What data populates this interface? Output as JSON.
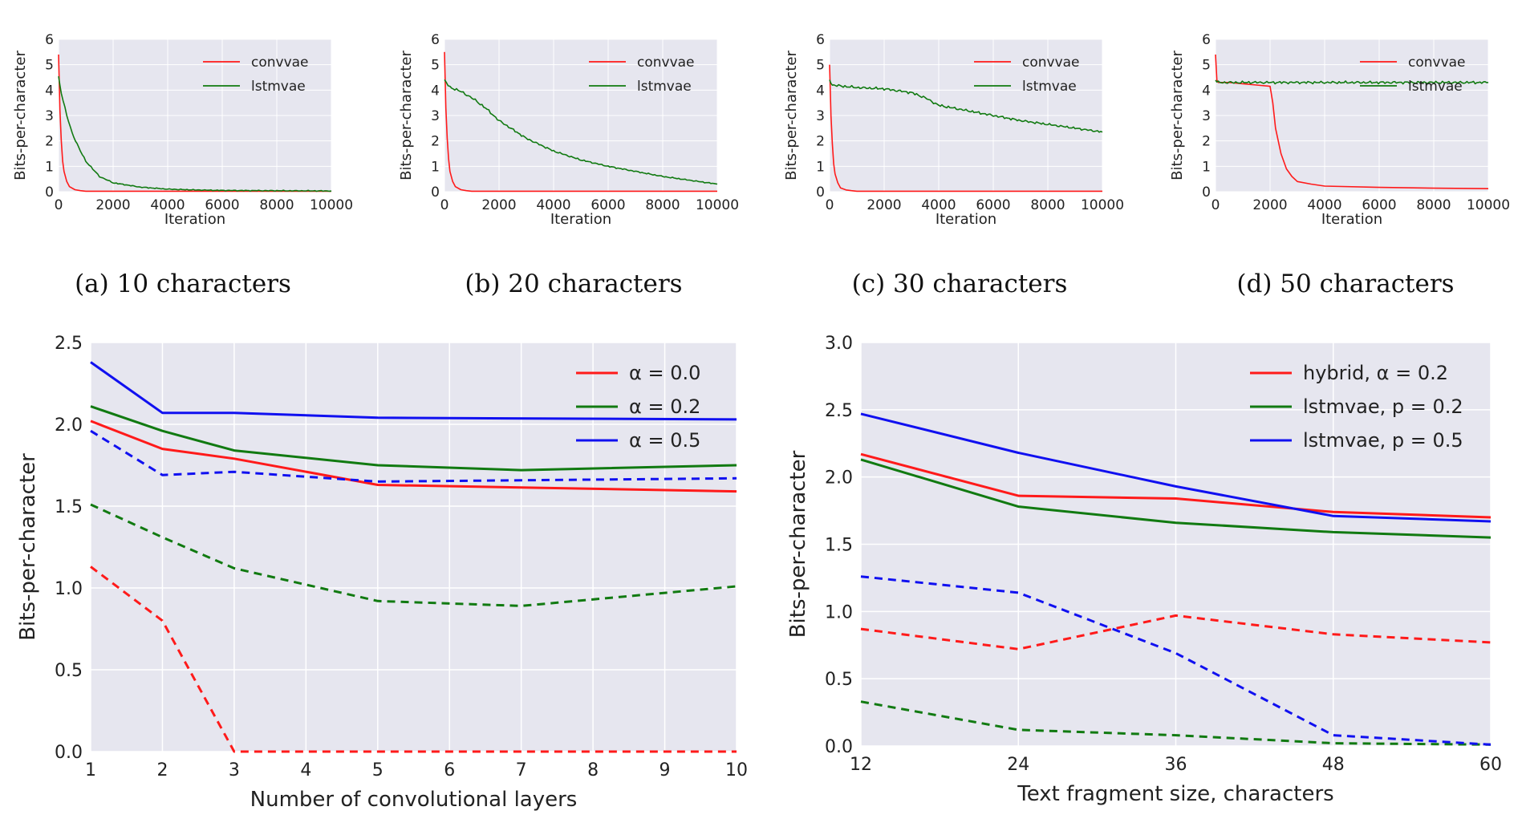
{
  "colors": {
    "red": "#ff1a1a",
    "green": "#117a11",
    "blue": "#1010f0",
    "panel_bg": "#e6e6ef",
    "grid": "#ffffff"
  },
  "chart_data": [
    {
      "id": "a",
      "type": "line",
      "caption": "(a)  10 characters",
      "xlabel": "Iteration",
      "ylabel": "Bits-per-character",
      "xlim": [
        0,
        10000
      ],
      "ylim": [
        0,
        6
      ],
      "xticks": [
        "0",
        "2000",
        "4000",
        "6000",
        "8000",
        "10000"
      ],
      "yticks": [
        "0",
        "1",
        "2",
        "3",
        "4",
        "5",
        "6"
      ],
      "legend": "top-right",
      "series": [
        {
          "name": "convvae",
          "color": "red",
          "x": [
            0,
            50,
            100,
            150,
            200,
            300,
            400,
            600,
            800,
            1000,
            10000
          ],
          "y": [
            5.4,
            3.2,
            2.0,
            1.2,
            0.8,
            0.4,
            0.2,
            0.08,
            0.04,
            0.02,
            0.02
          ]
        },
        {
          "name": "lstmvae",
          "color": "green",
          "x": [
            0,
            100,
            300,
            500,
            800,
            1000,
            1500,
            2000,
            3000,
            4000,
            5000,
            6000,
            8000,
            10000
          ],
          "y": [
            4.5,
            3.9,
            3.0,
            2.3,
            1.6,
            1.2,
            0.6,
            0.35,
            0.18,
            0.1,
            0.07,
            0.05,
            0.04,
            0.03
          ]
        }
      ]
    },
    {
      "id": "b",
      "type": "line",
      "caption": "(b)  20 characters",
      "xlabel": "Iteration",
      "ylabel": "Bits-per-character",
      "xlim": [
        0,
        10000
      ],
      "ylim": [
        0,
        6
      ],
      "xticks": [
        "0",
        "2000",
        "4000",
        "6000",
        "8000",
        "10000"
      ],
      "yticks": [
        "0",
        "1",
        "2",
        "3",
        "4",
        "5",
        "6"
      ],
      "legend": "top-right",
      "series": [
        {
          "name": "convvae",
          "color": "red",
          "x": [
            0,
            50,
            100,
            150,
            200,
            300,
            400,
            600,
            800,
            1000,
            10000
          ],
          "y": [
            5.5,
            3.3,
            2.1,
            1.3,
            0.8,
            0.4,
            0.2,
            0.08,
            0.04,
            0.02,
            0.02
          ]
        },
        {
          "name": "lstmvae",
          "color": "green",
          "x": [
            0,
            200,
            500,
            1000,
            1500,
            2000,
            3000,
            4000,
            5000,
            6000,
            7000,
            8000,
            9000,
            10000
          ],
          "y": [
            4.4,
            4.1,
            4.0,
            3.7,
            3.3,
            2.8,
            2.1,
            1.6,
            1.25,
            1.0,
            0.8,
            0.6,
            0.45,
            0.3
          ]
        }
      ]
    },
    {
      "id": "c",
      "type": "line",
      "caption": "(c)  30 characters",
      "xlabel": "Iteration",
      "ylabel": "Bits-per-character",
      "xlim": [
        0,
        10000
      ],
      "ylim": [
        0,
        6
      ],
      "xticks": [
        "0",
        "2000",
        "4000",
        "6000",
        "8000",
        "10000"
      ],
      "yticks": [
        "0",
        "1",
        "2",
        "3",
        "4",
        "5",
        "6"
      ],
      "legend": "top-right",
      "series": [
        {
          "name": "convvae",
          "color": "red",
          "x": [
            0,
            50,
            100,
            150,
            200,
            300,
            400,
            600,
            800,
            1000,
            10000
          ],
          "y": [
            5.0,
            3.0,
            1.9,
            1.1,
            0.7,
            0.35,
            0.15,
            0.07,
            0.04,
            0.02,
            0.02
          ]
        },
        {
          "name": "lstmvae",
          "color": "green",
          "x": [
            0,
            100,
            500,
            1000,
            2000,
            3000,
            3500,
            4000,
            5000,
            6000,
            7000,
            8000,
            9000,
            10000
          ],
          "y": [
            4.4,
            4.2,
            4.15,
            4.1,
            4.05,
            3.9,
            3.7,
            3.4,
            3.2,
            3.0,
            2.8,
            2.65,
            2.5,
            2.35
          ]
        }
      ]
    },
    {
      "id": "d",
      "type": "line",
      "caption": "(d)  50 characters",
      "xlabel": "Iteration",
      "ylabel": "Bits-per-character",
      "xlim": [
        0,
        10000
      ],
      "ylim": [
        0,
        6
      ],
      "xticks": [
        "0",
        "2000",
        "4000",
        "6000",
        "8000",
        "10000"
      ],
      "yticks": [
        "0",
        "1",
        "2",
        "3",
        "4",
        "5",
        "6"
      ],
      "legend": "top-right",
      "series": [
        {
          "name": "convvae",
          "color": "red",
          "x": [
            0,
            50,
            100,
            500,
            1000,
            1500,
            2000,
            2100,
            2200,
            2400,
            2600,
            2800,
            3000,
            3500,
            4000,
            6000,
            8000,
            10000
          ],
          "y": [
            5.4,
            4.4,
            4.3,
            4.3,
            4.25,
            4.2,
            4.15,
            3.5,
            2.5,
            1.5,
            0.9,
            0.6,
            0.4,
            0.3,
            0.22,
            0.17,
            0.14,
            0.12
          ]
        },
        {
          "name": "lstmvae",
          "color": "green",
          "x": [
            0,
            100,
            500,
            10000
          ],
          "y": [
            4.4,
            4.3,
            4.3,
            4.3
          ]
        }
      ]
    },
    {
      "id": "e",
      "type": "line",
      "xlabel": "Number of convolutional layers",
      "ylabel": "Bits-per-character",
      "xlim": [
        1,
        10
      ],
      "ylim": [
        0,
        2.5
      ],
      "xticks": [
        "1",
        "2",
        "3",
        "4",
        "5",
        "6",
        "7",
        "8",
        "9",
        "10"
      ],
      "yticks": [
        "0.0",
        "0.5",
        "1.0",
        "1.5",
        "2.0",
        "2.5"
      ],
      "legend": "top-right",
      "series": [
        {
          "name": "α = 0.0",
          "color": "red",
          "dash": false,
          "x": [
            1,
            2,
            3,
            5,
            10
          ],
          "y": [
            2.02,
            1.85,
            1.79,
            1.63,
            1.59
          ]
        },
        {
          "name": "α = 0.2",
          "color": "green",
          "dash": false,
          "x": [
            1,
            2,
            3,
            5,
            7,
            10
          ],
          "y": [
            2.11,
            1.96,
            1.84,
            1.75,
            1.72,
            1.75
          ]
        },
        {
          "name": "α = 0.5",
          "color": "blue",
          "dash": false,
          "x": [
            1,
            2,
            3,
            5,
            10
          ],
          "y": [
            2.38,
            2.07,
            2.07,
            2.04,
            2.03
          ]
        },
        {
          "name": "",
          "color": "red",
          "dash": true,
          "x": [
            1,
            2,
            3,
            10
          ],
          "y": [
            1.13,
            0.8,
            0.0,
            0.0
          ]
        },
        {
          "name": "",
          "color": "green",
          "dash": true,
          "x": [
            1,
            2,
            3,
            5,
            7,
            10
          ],
          "y": [
            1.51,
            1.31,
            1.12,
            0.92,
            0.89,
            1.01
          ]
        },
        {
          "name": "",
          "color": "blue",
          "dash": true,
          "x": [
            1,
            2,
            3,
            5,
            10
          ],
          "y": [
            1.96,
            1.69,
            1.71,
            1.65,
            1.67
          ]
        }
      ]
    },
    {
      "id": "f",
      "type": "line",
      "xlabel": "Text fragment size, characters",
      "ylabel": "Bits-per-character",
      "xlim": [
        12,
        60
      ],
      "ylim": [
        0,
        3.0
      ],
      "xticks": [
        "12",
        "24",
        "36",
        "48",
        "60"
      ],
      "yticks": [
        "0.0",
        "0.5",
        "1.0",
        "1.5",
        "2.0",
        "2.5",
        "3.0"
      ],
      "legend": "top-right",
      "series": [
        {
          "name": "hybrid, α = 0.2",
          "color": "red",
          "dash": false,
          "x": [
            12,
            24,
            36,
            48,
            60
          ],
          "y": [
            2.17,
            1.86,
            1.84,
            1.74,
            1.7
          ]
        },
        {
          "name": "lstmvae, p = 0.2",
          "color": "green",
          "dash": false,
          "x": [
            12,
            24,
            36,
            48,
            60
          ],
          "y": [
            2.13,
            1.78,
            1.66,
            1.59,
            1.55
          ]
        },
        {
          "name": "lstmvae, p = 0.5",
          "color": "blue",
          "dash": false,
          "x": [
            12,
            24,
            36,
            48,
            60
          ],
          "y": [
            2.47,
            2.18,
            1.93,
            1.71,
            1.67
          ]
        },
        {
          "name": "",
          "color": "red",
          "dash": true,
          "x": [
            12,
            24,
            36,
            48,
            60
          ],
          "y": [
            0.87,
            0.72,
            0.97,
            0.83,
            0.77
          ]
        },
        {
          "name": "",
          "color": "green",
          "dash": true,
          "x": [
            12,
            24,
            36,
            48,
            60
          ],
          "y": [
            0.33,
            0.12,
            0.08,
            0.02,
            0.01
          ]
        },
        {
          "name": "",
          "color": "blue",
          "dash": true,
          "x": [
            12,
            24,
            36,
            48,
            60
          ],
          "y": [
            1.26,
            1.14,
            0.69,
            0.08,
            0.01
          ]
        }
      ]
    }
  ]
}
